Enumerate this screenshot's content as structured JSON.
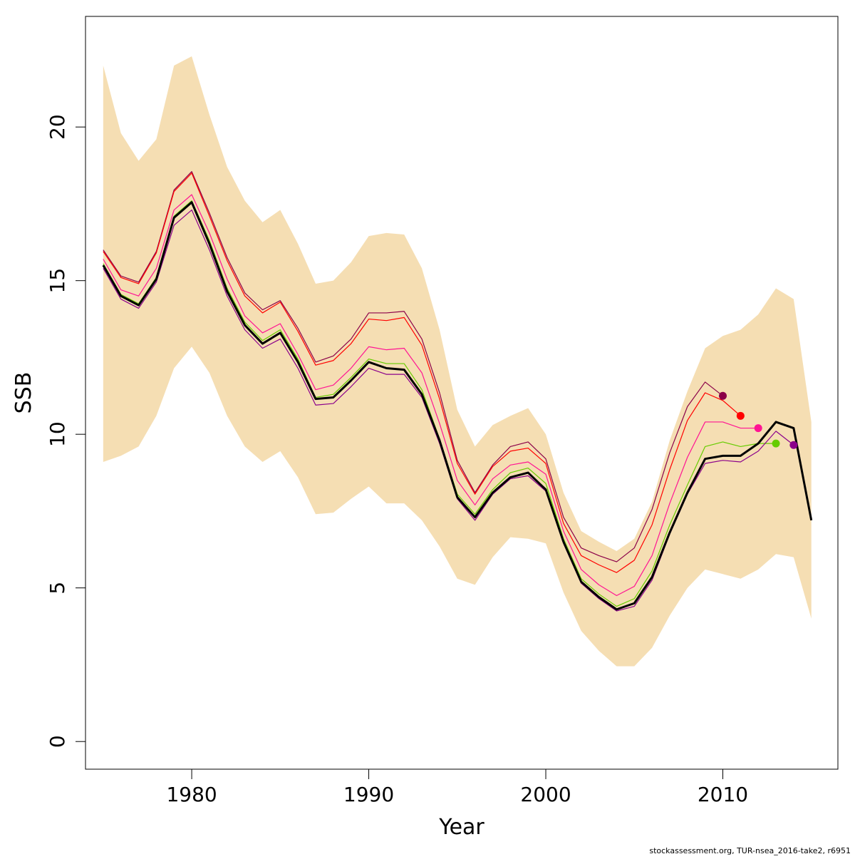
{
  "chart_data": {
    "type": "line",
    "title": "",
    "xlabel": "Year",
    "ylabel": "SSB",
    "xlim": [
      1974,
      2016.5
    ],
    "ylim": [
      -0.9,
      23.6
    ],
    "x_ticks": [
      1980,
      1990,
      2000,
      2010
    ],
    "x_tick_labels": [
      "1980",
      "1990",
      "2000",
      "2010"
    ],
    "y_ticks": [
      0,
      5,
      10,
      15,
      20
    ],
    "y_tick_labels": [
      "0",
      "5",
      "10",
      "15",
      "20"
    ],
    "grid": false,
    "legend": "none",
    "band": {
      "color": "#f5deb3",
      "x": [
        1975,
        1976,
        1977,
        1978,
        1979,
        1980,
        1981,
        1982,
        1983,
        1984,
        1985,
        1986,
        1987,
        1988,
        1989,
        1990,
        1991,
        1992,
        1993,
        1994,
        1995,
        1996,
        1997,
        1998,
        1999,
        2000,
        2001,
        2002,
        2003,
        2004,
        2005,
        2006,
        2007,
        2008,
        2009,
        2010,
        2011,
        2012,
        2013,
        2014,
        2015
      ],
      "upper": [
        22.0,
        19.8,
        18.9,
        19.6,
        22.0,
        22.3,
        20.4,
        18.7,
        17.6,
        16.9,
        17.3,
        16.2,
        14.9,
        15.0,
        15.6,
        16.45,
        16.55,
        16.5,
        15.4,
        13.4,
        10.8,
        9.6,
        10.3,
        10.6,
        10.85,
        10.0,
        8.1,
        6.85,
        6.5,
        6.2,
        6.6,
        7.8,
        9.8,
        11.4,
        12.8,
        13.2,
        13.4,
        13.9,
        14.75,
        14.4,
        10.4
      ],
      "lower": [
        9.1,
        9.3,
        9.6,
        10.6,
        12.15,
        12.85,
        12.0,
        10.6,
        9.6,
        9.1,
        9.45,
        8.6,
        7.4,
        7.45,
        7.9,
        8.3,
        7.75,
        7.75,
        7.2,
        6.35,
        5.3,
        5.1,
        6.0,
        6.65,
        6.6,
        6.45,
        4.85,
        3.6,
        2.95,
        2.45,
        2.45,
        3.05,
        4.1,
        5.0,
        5.6,
        5.45,
        5.3,
        5.6,
        6.1,
        6.0,
        4.0
      ]
    },
    "series": [
      {
        "color": "#8b0048",
        "x": [
          1975,
          1976,
          1977,
          1978,
          1979,
          1980,
          1981,
          1982,
          1983,
          1984,
          1985,
          1986,
          1987,
          1988,
          1989,
          1990,
          1991,
          1992,
          1993,
          1994,
          1995,
          1996,
          1997,
          1998,
          1999,
          2000,
          2001,
          2002,
          2003,
          2004,
          2005,
          2006,
          2007,
          2008,
          2009,
          2010
        ],
        "values": [
          16.0,
          15.15,
          14.95,
          15.95,
          17.95,
          18.55,
          17.2,
          15.75,
          14.6,
          14.05,
          14.35,
          13.45,
          12.35,
          12.55,
          13.1,
          13.95,
          13.95,
          14.0,
          13.1,
          11.35,
          9.15,
          8.1,
          9.0,
          9.6,
          9.75,
          9.2,
          7.3,
          6.3,
          6.05,
          5.85,
          6.3,
          7.55,
          9.4,
          10.9,
          11.7,
          11.25
        ],
        "end_marker": true
      },
      {
        "color": "#ff0000",
        "x": [
          1975,
          1976,
          1977,
          1978,
          1979,
          1980,
          1981,
          1982,
          1983,
          1984,
          1985,
          1986,
          1987,
          1988,
          1989,
          1990,
          1991,
          1992,
          1993,
          1994,
          1995,
          1996,
          1997,
          1998,
          1999,
          2000,
          2001,
          2002,
          2003,
          2004,
          2005,
          2006,
          2007,
          2008,
          2009,
          2010,
          2011
        ],
        "values": [
          15.95,
          15.1,
          14.9,
          15.9,
          17.9,
          18.5,
          17.1,
          15.65,
          14.5,
          13.95,
          14.3,
          13.35,
          12.25,
          12.4,
          12.95,
          13.75,
          13.7,
          13.8,
          12.9,
          11.15,
          9.05,
          8.05,
          8.95,
          9.45,
          9.55,
          9.05,
          7.1,
          6.05,
          5.75,
          5.5,
          5.9,
          7.05,
          8.85,
          10.45,
          11.35,
          11.1,
          10.6
        ],
        "end_marker": true
      },
      {
        "color": "#ff1493",
        "x": [
          1975,
          1976,
          1977,
          1978,
          1979,
          1980,
          1981,
          1982,
          1983,
          1984,
          1985,
          1986,
          1987,
          1988,
          1989,
          1990,
          1991,
          1992,
          1993,
          1994,
          1995,
          1996,
          1997,
          1998,
          1999,
          2000,
          2001,
          2002,
          2003,
          2004,
          2005,
          2006,
          2007,
          2008,
          2009,
          2010,
          2011,
          2012
        ],
        "values": [
          15.7,
          14.7,
          14.5,
          15.4,
          17.3,
          17.8,
          16.55,
          15.05,
          13.85,
          13.3,
          13.6,
          12.6,
          11.45,
          11.6,
          12.15,
          12.85,
          12.75,
          12.8,
          12.0,
          10.35,
          8.5,
          7.7,
          8.55,
          9.0,
          9.1,
          8.7,
          6.85,
          5.6,
          5.1,
          4.75,
          5.05,
          6.05,
          7.75,
          9.25,
          10.4,
          10.4,
          10.2,
          10.2
        ],
        "end_marker": true
      },
      {
        "color": "#66cc00",
        "x": [
          1975,
          1976,
          1977,
          1978,
          1979,
          1980,
          1981,
          1982,
          1983,
          1984,
          1985,
          1986,
          1987,
          1988,
          1989,
          1990,
          1991,
          1992,
          1993,
          1994,
          1995,
          1996,
          1997,
          1998,
          1999,
          2000,
          2001,
          2002,
          2003,
          2004,
          2005,
          2006,
          2007,
          2008,
          2009,
          2010,
          2011,
          2012,
          2013
        ],
        "values": [
          15.55,
          14.55,
          14.25,
          15.1,
          17.1,
          17.6,
          16.3,
          14.75,
          13.65,
          13.05,
          13.4,
          12.45,
          11.2,
          11.3,
          11.85,
          12.45,
          12.3,
          12.3,
          11.45,
          9.85,
          8.05,
          7.4,
          8.2,
          8.75,
          8.9,
          8.4,
          6.6,
          5.3,
          4.8,
          4.4,
          4.65,
          5.55,
          7.05,
          8.35,
          9.6,
          9.75,
          9.6,
          9.7,
          9.7
        ],
        "end_marker": true
      },
      {
        "color": "#8b008b",
        "x": [
          1975,
          1976,
          1977,
          1978,
          1979,
          1980,
          1981,
          1982,
          1983,
          1984,
          1985,
          1986,
          1987,
          1988,
          1989,
          1990,
          1991,
          1992,
          1993,
          1994,
          1995,
          1996,
          1997,
          1998,
          1999,
          2000,
          2001,
          2002,
          2003,
          2004,
          2005,
          2006,
          2007,
          2008,
          2009,
          2010,
          2011,
          2012,
          2013,
          2014
        ],
        "values": [
          15.4,
          14.4,
          14.1,
          14.95,
          16.8,
          17.3,
          16.0,
          14.5,
          13.4,
          12.8,
          13.1,
          12.15,
          10.95,
          11.0,
          11.55,
          12.15,
          11.95,
          11.95,
          11.2,
          9.7,
          7.9,
          7.2,
          8.05,
          8.55,
          8.65,
          8.15,
          6.45,
          5.15,
          4.65,
          4.25,
          4.4,
          5.25,
          6.75,
          8.05,
          9.05,
          9.15,
          9.1,
          9.45,
          10.1,
          9.65
        ],
        "end_marker": true
      },
      {
        "color": "#000000",
        "bold": true,
        "x": [
          1975,
          1976,
          1977,
          1978,
          1979,
          1980,
          1981,
          1982,
          1983,
          1984,
          1985,
          1986,
          1987,
          1988,
          1989,
          1990,
          1991,
          1992,
          1993,
          1994,
          1995,
          1996,
          1997,
          1998,
          1999,
          2000,
          2001,
          2002,
          2003,
          2004,
          2005,
          2006,
          2007,
          2008,
          2009,
          2010,
          2011,
          2012,
          2013,
          2014,
          2015
        ],
        "values": [
          15.5,
          14.5,
          14.2,
          15.05,
          17.05,
          17.55,
          16.2,
          14.65,
          13.55,
          12.95,
          13.3,
          12.35,
          11.15,
          11.2,
          11.75,
          12.35,
          12.15,
          12.1,
          11.3,
          9.8,
          7.95,
          7.3,
          8.1,
          8.6,
          8.75,
          8.2,
          6.5,
          5.2,
          4.7,
          4.3,
          4.5,
          5.35,
          6.8,
          8.1,
          9.2,
          9.3,
          9.3,
          9.7,
          10.4,
          10.2,
          7.2
        ],
        "end_marker": false
      }
    ]
  },
  "footer": "stockassessment.org, TUR-nsea_2016-take2, r6951"
}
